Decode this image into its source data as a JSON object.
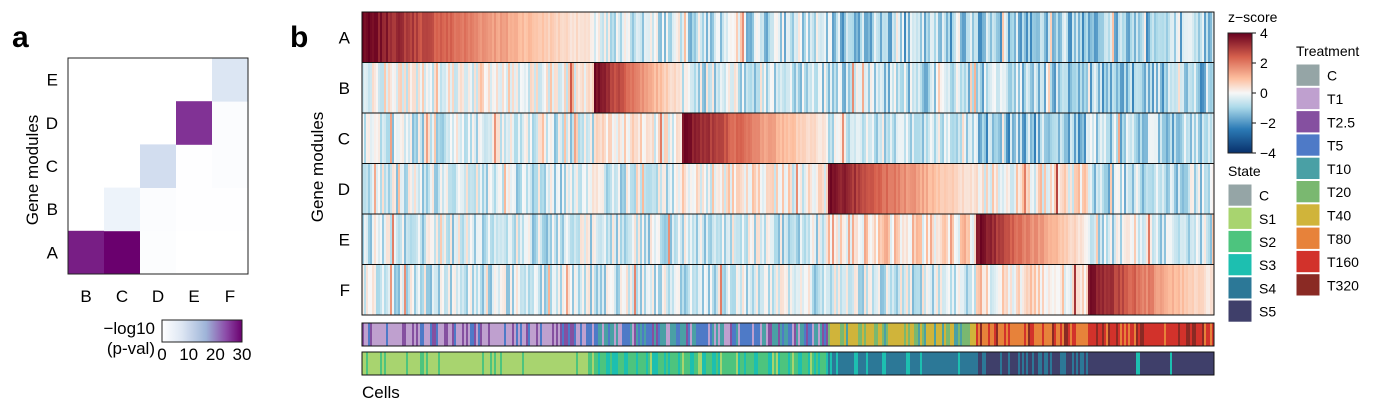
{
  "panel_a": {
    "letter": "a",
    "ylabel": "Gene modules",
    "colorbar_label_line1": "−log10",
    "colorbar_label_line2": "(p-val)"
  },
  "panel_b": {
    "letter": "b",
    "ylabel": "Gene modules",
    "xlabel": "Cells",
    "zscore_title": "z−score",
    "state_title": "State",
    "treatment_title": "Treatment"
  },
  "chart_data": [
    {
      "type": "heatmap",
      "title": "",
      "xlabel": "",
      "ylabel": "Gene modules",
      "x_categories": [
        "B",
        "C",
        "D",
        "E",
        "F"
      ],
      "y_categories": [
        "A",
        "B",
        "C",
        "D",
        "E"
      ],
      "value_label": "−log10 (p-val)",
      "color_range": [
        0,
        30
      ],
      "colorbar_ticks": [
        0,
        10,
        20,
        30
      ],
      "colorscale": [
        "#ffffff",
        "#ecf2fa",
        "#9eb4d8",
        "#8c4ba8",
        "#6a006e"
      ],
      "lower_triangle_only": true,
      "values": [
        [
          27,
          30,
          1,
          0,
          0
        ],
        [
          null,
          7,
          1.5,
          0.5,
          0.5
        ],
        [
          null,
          null,
          10,
          0.5,
          1.5
        ],
        [
          null,
          null,
          null,
          25,
          1.5
        ],
        [
          null,
          null,
          null,
          null,
          9
        ]
      ]
    },
    {
      "type": "heatmap",
      "title": "",
      "xlabel": "Cells",
      "ylabel": "Gene modules",
      "rows": [
        "A",
        "B",
        "C",
        "D",
        "E",
        "F"
      ],
      "value_label": "z−score",
      "color_range": [
        -4,
        4
      ],
      "colorbar_ticks": [
        4,
        2,
        0,
        -2,
        -4
      ],
      "colorscale": [
        "#08306b",
        "#2c7bb6",
        "#abd9e9",
        "#f7f7f7",
        "#fdbf9f",
        "#d6604d",
        "#67001f"
      ],
      "cell_segments": [
        {
          "state": "S1",
          "cell_fraction": 0.27,
          "peak_module": "A"
        },
        {
          "state": "S2",
          "cell_fraction": 0.105,
          "peak_module": "B"
        },
        {
          "state": "S2",
          "cell_fraction": 0.17,
          "peak_module": "C"
        },
        {
          "state": "S3",
          "cell_fraction": 0.175,
          "peak_module": "D"
        },
        {
          "state": "S4",
          "cell_fraction": 0.13,
          "peak_module": "E"
        },
        {
          "state": "S5",
          "cell_fraction": 0.15,
          "peak_module": "F"
        }
      ],
      "annotation_tracks": [
        {
          "name": "Treatment",
          "sequence": [
            "T1",
            "T2.5",
            "T5",
            "T10",
            "T20",
            "T40",
            "T80",
            "T160",
            "T320"
          ]
        },
        {
          "name": "State",
          "sequence": [
            "S1",
            "S2",
            "S3",
            "S4",
            "S5"
          ]
        }
      ]
    }
  ],
  "legends": {
    "state": [
      {
        "label": "C",
        "color": "#95a5a6"
      },
      {
        "label": "S1",
        "color": "#a8d46f"
      },
      {
        "label": "S2",
        "color": "#4dc47e"
      },
      {
        "label": "S3",
        "color": "#1dbfb0"
      },
      {
        "label": "S4",
        "color": "#2c7897"
      },
      {
        "label": "S5",
        "color": "#3f3f6a"
      }
    ],
    "treatment": [
      {
        "label": "C",
        "color": "#95a5a6"
      },
      {
        "label": "T1",
        "color": "#bfa0cf"
      },
      {
        "label": "T2.5",
        "color": "#8550a0"
      },
      {
        "label": "T5",
        "color": "#4e7ac7"
      },
      {
        "label": "T10",
        "color": "#4aa0a5"
      },
      {
        "label": "T20",
        "color": "#7ab870"
      },
      {
        "label": "T40",
        "color": "#d0b43a"
      },
      {
        "label": "T80",
        "color": "#e7823a"
      },
      {
        "label": "T160",
        "color": "#d2322b"
      },
      {
        "label": "T320",
        "color": "#8a2a24"
      }
    ]
  }
}
